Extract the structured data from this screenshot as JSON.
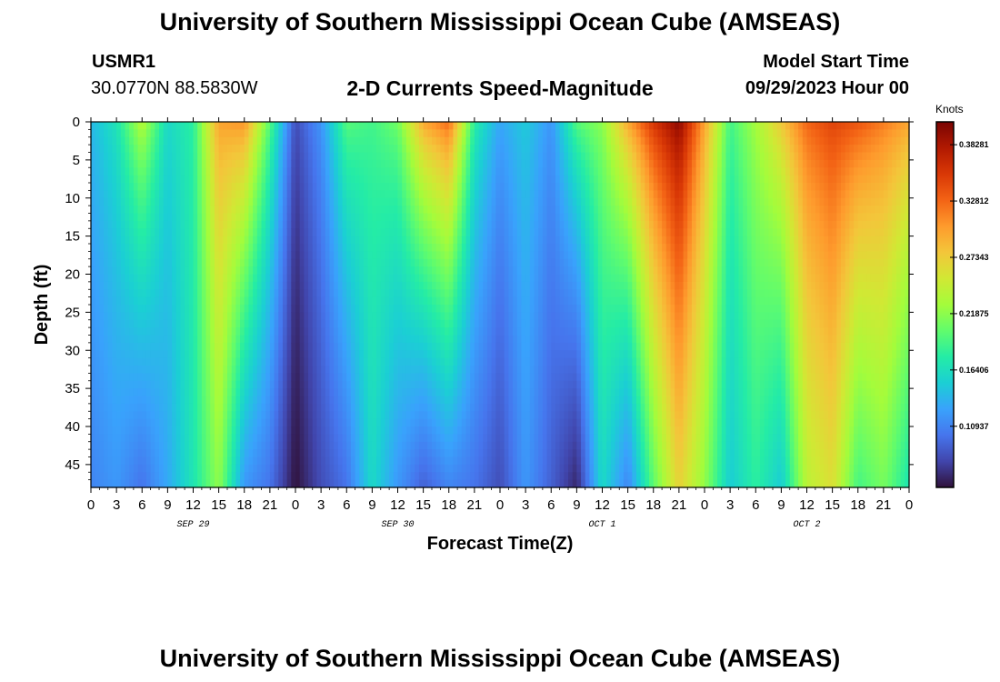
{
  "page": {
    "title": "University of Southern Mississippi Ocean Cube (AMSEAS)",
    "footer_title": "University of Southern Mississippi Ocean Cube (AMSEAS)",
    "station": "USMR1",
    "coordinates": "30.0770N  88.5830W",
    "subtitle": "2-D Currents Speed-Magnitude",
    "model_start_label": "Model Start Time",
    "model_start_value": "09/29/2023 Hour 00"
  },
  "chart_data": {
    "type": "heatmap",
    "title": "2-D Currents Speed-Magnitude",
    "xlabel": "Forecast Time(Z)",
    "ylabel": "Depth (ft)",
    "x_range_hours": [
      0,
      96
    ],
    "y_range_ft": [
      0,
      48
    ],
    "x_tick_step_hours": 3,
    "x_tick_labels": [
      "0",
      "3",
      "6",
      "9",
      "12",
      "15",
      "18",
      "21",
      "0",
      "3",
      "6",
      "9",
      "12",
      "15",
      "18",
      "21",
      "0",
      "3",
      "6",
      "9",
      "12",
      "15",
      "18",
      "21",
      "0",
      "3",
      "6",
      "9",
      "12",
      "15",
      "18",
      "21",
      "0"
    ],
    "date_labels": [
      {
        "text": "SEP 29",
        "hour": 12
      },
      {
        "text": "SEP 30",
        "hour": 36
      },
      {
        "text": "OCT 1",
        "hour": 60
      },
      {
        "text": "OCT 2",
        "hour": 84
      }
    ],
    "y_ticks": [
      0,
      5,
      10,
      15,
      20,
      25,
      30,
      35,
      40,
      45
    ],
    "colorbar": {
      "unit_label": "Knots",
      "tick_labels": [
        "0.38281",
        "0.32812",
        "0.27343",
        "0.21875",
        "0.16406",
        "0.10937"
      ],
      "tick_values": [
        0.38281,
        0.32812,
        0.27343,
        0.21875,
        0.16406,
        0.10937
      ],
      "range": [
        0.05,
        0.405
      ],
      "colors": [
        "#30123b",
        "#4145ab",
        "#4675ed",
        "#39a2fc",
        "#1bcfd4",
        "#24eca6",
        "#61fc6c",
        "#a4fc3b",
        "#d1e834",
        "#f3c63a",
        "#fe9b2d",
        "#f36315",
        "#d93806",
        "#b11901",
        "#7a0403"
      ]
    },
    "speed_keyframes": {
      "hours": [
        0,
        3,
        6,
        9,
        12,
        15,
        18,
        21,
        24,
        27,
        30,
        33,
        36,
        39,
        42,
        45,
        48,
        51,
        54,
        57,
        60,
        63,
        66,
        69,
        72,
        75,
        78,
        81,
        84,
        87,
        90,
        93,
        96
      ],
      "surface_knots": [
        0.14,
        0.17,
        0.24,
        0.16,
        0.18,
        0.3,
        0.31,
        0.2,
        0.08,
        0.12,
        0.2,
        0.19,
        0.21,
        0.3,
        0.33,
        0.18,
        0.13,
        0.15,
        0.12,
        0.2,
        0.22,
        0.3,
        0.36,
        0.4,
        0.3,
        0.19,
        0.23,
        0.28,
        0.33,
        0.35,
        0.34,
        0.32,
        0.3
      ],
      "bottom_knots": [
        0.11,
        0.12,
        0.1,
        0.13,
        0.17,
        0.22,
        0.12,
        0.1,
        0.05,
        0.08,
        0.1,
        0.16,
        0.12,
        0.09,
        0.11,
        0.1,
        0.08,
        0.12,
        0.09,
        0.06,
        0.16,
        0.11,
        0.2,
        0.27,
        0.22,
        0.15,
        0.18,
        0.15,
        0.24,
        0.26,
        0.19,
        0.21,
        0.17
      ]
    }
  }
}
